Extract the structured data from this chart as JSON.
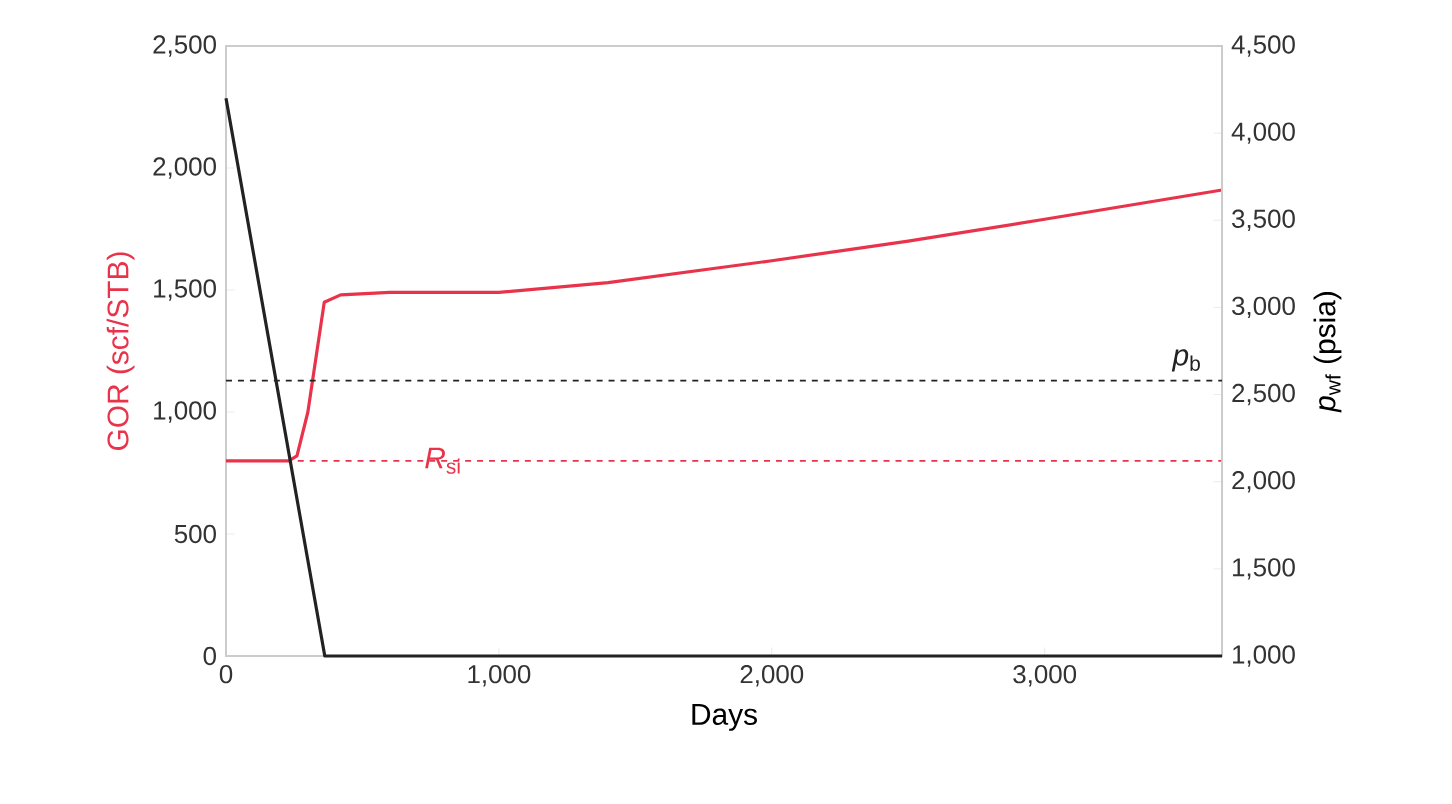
{
  "chart_data": {
    "type": "line",
    "xlabel": "Days",
    "ylabel": "GOR (scf/STB)",
    "y2label": "*p*$_{wf}$ (psia)",
    "xlim": [
      0,
      3650
    ],
    "xticks": [
      0,
      {
        "value": 1000,
        "label": "1,000"
      },
      {
        "value": 2000,
        "label": "2,000"
      },
      {
        "value": 3000,
        "label": "3,000"
      }
    ],
    "ylim": [
      0,
      2500
    ],
    "yticks": [
      0,
      500,
      {
        "value": 1000,
        "label": "1,000"
      },
      {
        "value": 1500,
        "label": "1,500"
      },
      {
        "value": 2000,
        "label": "2,000"
      },
      {
        "value": 2500,
        "label": "2,500"
      }
    ],
    "y2lim": [
      1000,
      4500
    ],
    "y2ticks": [
      {
        "value": 1000,
        "label": "1,000"
      },
      {
        "value": 1500,
        "label": "1,500"
      },
      {
        "value": 2000,
        "label": "2,000"
      },
      {
        "value": 2500,
        "label": "2,500"
      },
      {
        "value": 3000,
        "label": "3,000"
      },
      {
        "value": 3500,
        "label": "3,500"
      },
      {
        "value": 4000,
        "label": "4,000"
      },
      {
        "value": 4500,
        "label": "4,500"
      }
    ],
    "series": [
      {
        "color": "#e8334a",
        "x": [
          0,
          230,
          260,
          300,
          340,
          360,
          420,
          600,
          1000,
          1400,
          1800,
          2000,
          2500,
          3000,
          3650
        ],
        "values": [
          800,
          800,
          820,
          1000,
          1300,
          1450,
          1480,
          1490,
          1490,
          1530,
          1590,
          1620,
          1700,
          1790,
          1910
        ]
      },
      {
        "color": "#222222",
        "axis": "y2",
        "x": [
          0,
          362,
          3650
        ],
        "values": [
          4200,
          1000,
          1000
        ]
      }
    ],
    "ref_lines": [
      {
        "axis": "y",
        "value": 800,
        "label": "*R*$_{si}$",
        "color": "#e8334a",
        "line_style": "dashed"
      },
      {
        "axis": "y2",
        "value": 2580,
        "label": "*p*$_{b}$",
        "color": "#222222",
        "line_style": "dashed"
      }
    ]
  }
}
